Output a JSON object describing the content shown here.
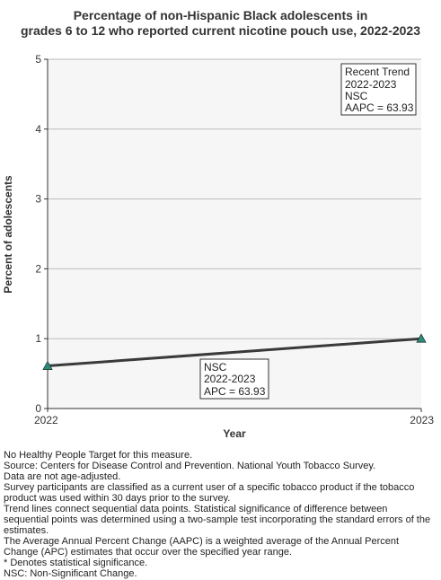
{
  "chart_data": {
    "type": "line",
    "title_lines": [
      "Percentage of non-Hispanic Black adolescents in",
      "grades 6 to 12 who reported current nicotine pouch use, 2022-2023"
    ],
    "xlabel": "Year",
    "ylabel": "Percent of adolescents",
    "x_ticks": [
      "2022",
      "2023"
    ],
    "y_ticks": [
      "0",
      "1",
      "2",
      "3",
      "4",
      "5"
    ],
    "ylim": [
      0,
      5
    ],
    "xlim": [
      2022,
      2023
    ],
    "grid": true,
    "series": [
      {
        "x": [
          2022,
          2023
        ],
        "y": [
          0.61,
          1.0
        ],
        "color": "#3a3a3a",
        "marker_color": "#2e8b7a"
      }
    ],
    "annotations": {
      "recent_trend": [
        "Recent Trend",
        "2022-2023",
        "NSC",
        "AAPC = 63.93"
      ],
      "segment": [
        "NSC",
        "2022-2023",
        "APC = 63.93"
      ]
    }
  },
  "footnotes": [
    "No Healthy People Target for this measure.",
    "Source: Centers for Disease Control and Prevention. National Youth Tobacco Survey.",
    "Data are not age-adjusted.",
    "Survey participants are classified as a current user of a specific tobacco product if the tobacco",
    "product was used within 30 days prior to the survey.",
    "Trend lines connect sequential data points. Statistical significance of difference between",
    "sequential points was determined using a two-sample test incorporating the standard errors of the",
    "estimates.",
    "The Average Annual Percent Change (AAPC) is a weighted average of the Annual Percent",
    "Change (APC) estimates that occur over the specified year range.",
    "* Denotes statistical significance.",
    "NSC: Non-Significant Change."
  ]
}
